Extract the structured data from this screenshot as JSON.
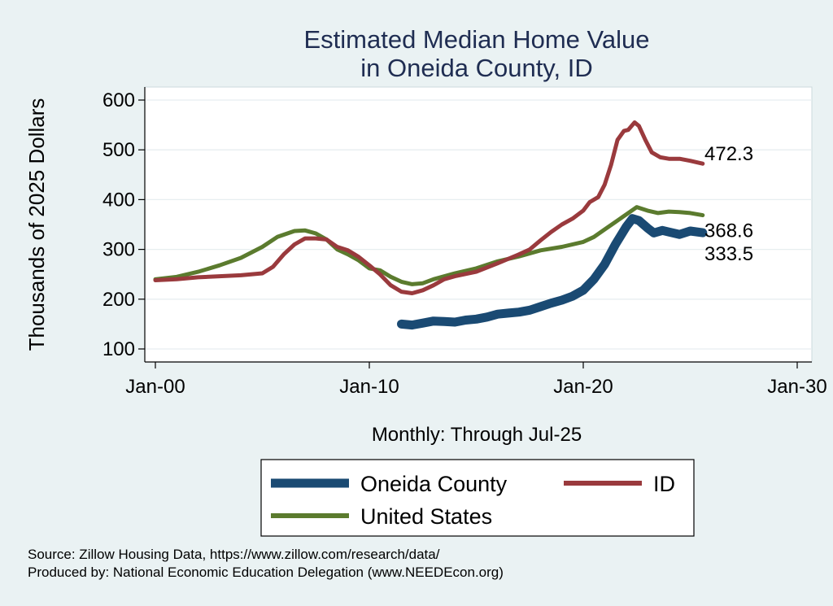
{
  "chart_data": {
    "type": "line",
    "title": [
      "Estimated Median Home Value",
      "in Oneida County, ID"
    ],
    "ylabel": "Thousands of 2025 Dollars",
    "xlabel": "Monthly: Through Jul-25",
    "ylim": [
      90,
      620
    ],
    "yticks": [
      100,
      200,
      300,
      400,
      500,
      600
    ],
    "xlim": [
      2000,
      2030
    ],
    "xticks": [
      {
        "value": 2000,
        "label": "Jan-00"
      },
      {
        "value": 2010,
        "label": "Jan-10"
      },
      {
        "value": 2020,
        "label": "Jan-20"
      },
      {
        "value": 2030,
        "label": "Jan-30"
      }
    ],
    "series": [
      {
        "name": "Oneida County",
        "color": "#1a4a73",
        "width": 11,
        "end_label": "333.5",
        "points": [
          [
            2011.5,
            150
          ],
          [
            2012.0,
            148
          ],
          [
            2012.5,
            152
          ],
          [
            2013.0,
            156
          ],
          [
            2013.5,
            155
          ],
          [
            2014.0,
            154
          ],
          [
            2014.5,
            158
          ],
          [
            2015.0,
            160
          ],
          [
            2015.5,
            164
          ],
          [
            2016.0,
            170
          ],
          [
            2016.5,
            172
          ],
          [
            2017.0,
            174
          ],
          [
            2017.5,
            178
          ],
          [
            2018.0,
            185
          ],
          [
            2018.5,
            192
          ],
          [
            2019.0,
            198
          ],
          [
            2019.5,
            206
          ],
          [
            2020.0,
            218
          ],
          [
            2020.5,
            240
          ],
          [
            2021.0,
            270
          ],
          [
            2021.5,
            310
          ],
          [
            2022.0,
            345
          ],
          [
            2022.3,
            362
          ],
          [
            2022.6,
            358
          ],
          [
            2023.0,
            343
          ],
          [
            2023.3,
            333
          ],
          [
            2023.7,
            338
          ],
          [
            2024.0,
            335
          ],
          [
            2024.5,
            330
          ],
          [
            2025.0,
            337
          ],
          [
            2025.58,
            333.5
          ]
        ]
      },
      {
        "name": "ID",
        "color": "#9a3a3d",
        "width": 5,
        "end_label": "472.3",
        "points": [
          [
            2000.0,
            238
          ],
          [
            2001.0,
            240
          ],
          [
            2002.0,
            244
          ],
          [
            2003.0,
            246
          ],
          [
            2004.0,
            248
          ],
          [
            2005.0,
            252
          ],
          [
            2005.5,
            265
          ],
          [
            2006.0,
            290
          ],
          [
            2006.5,
            310
          ],
          [
            2007.0,
            322
          ],
          [
            2007.5,
            322
          ],
          [
            2008.0,
            320
          ],
          [
            2008.5,
            305
          ],
          [
            2009.0,
            298
          ],
          [
            2009.5,
            285
          ],
          [
            2010.0,
            268
          ],
          [
            2010.5,
            250
          ],
          [
            2011.0,
            228
          ],
          [
            2011.5,
            215
          ],
          [
            2012.0,
            212
          ],
          [
            2012.5,
            218
          ],
          [
            2013.0,
            228
          ],
          [
            2013.5,
            240
          ],
          [
            2014.0,
            246
          ],
          [
            2015.0,
            255
          ],
          [
            2016.0,
            272
          ],
          [
            2017.0,
            290
          ],
          [
            2017.5,
            300
          ],
          [
            2018.0,
            318
          ],
          [
            2018.5,
            335
          ],
          [
            2019.0,
            350
          ],
          [
            2019.5,
            362
          ],
          [
            2020.0,
            378
          ],
          [
            2020.3,
            395
          ],
          [
            2020.7,
            405
          ],
          [
            2021.0,
            430
          ],
          [
            2021.3,
            470
          ],
          [
            2021.6,
            520
          ],
          [
            2021.9,
            538
          ],
          [
            2022.1,
            540
          ],
          [
            2022.4,
            555
          ],
          [
            2022.6,
            548
          ],
          [
            2022.9,
            520
          ],
          [
            2023.2,
            495
          ],
          [
            2023.6,
            485
          ],
          [
            2024.0,
            482
          ],
          [
            2024.5,
            482
          ],
          [
            2025.0,
            478
          ],
          [
            2025.58,
            472.3
          ]
        ]
      },
      {
        "name": "United States",
        "color": "#5b7b2e",
        "width": 5,
        "end_label": "368.6",
        "points": [
          [
            2000.0,
            240
          ],
          [
            2001.0,
            245
          ],
          [
            2002.0,
            255
          ],
          [
            2003.0,
            268
          ],
          [
            2004.0,
            283
          ],
          [
            2005.0,
            305
          ],
          [
            2005.7,
            325
          ],
          [
            2006.5,
            337
          ],
          [
            2007.0,
            338
          ],
          [
            2007.5,
            332
          ],
          [
            2008.0,
            320
          ],
          [
            2008.5,
            300
          ],
          [
            2009.0,
            290
          ],
          [
            2009.5,
            278
          ],
          [
            2010.0,
            262
          ],
          [
            2010.5,
            258
          ],
          [
            2011.0,
            245
          ],
          [
            2011.5,
            235
          ],
          [
            2012.0,
            230
          ],
          [
            2012.5,
            232
          ],
          [
            2013.0,
            240
          ],
          [
            2014.0,
            252
          ],
          [
            2015.0,
            262
          ],
          [
            2016.0,
            276
          ],
          [
            2017.0,
            286
          ],
          [
            2018.0,
            298
          ],
          [
            2019.0,
            305
          ],
          [
            2020.0,
            315
          ],
          [
            2020.5,
            325
          ],
          [
            2021.0,
            340
          ],
          [
            2021.5,
            355
          ],
          [
            2022.0,
            370
          ],
          [
            2022.5,
            385
          ],
          [
            2023.0,
            378
          ],
          [
            2023.5,
            373
          ],
          [
            2024.0,
            376
          ],
          [
            2024.5,
            375
          ],
          [
            2025.0,
            373
          ],
          [
            2025.58,
            368.6
          ]
        ]
      }
    ],
    "legend": {
      "position": "bottom",
      "entries": [
        "Oneida County",
        "ID",
        "United States"
      ]
    },
    "grid": true,
    "notes": [
      "Source: Zillow Housing Data, https://www.zillow.com/research/data/",
      "Produced by: National Economic Education Delegation (www.NEEDEcon.org)"
    ]
  }
}
